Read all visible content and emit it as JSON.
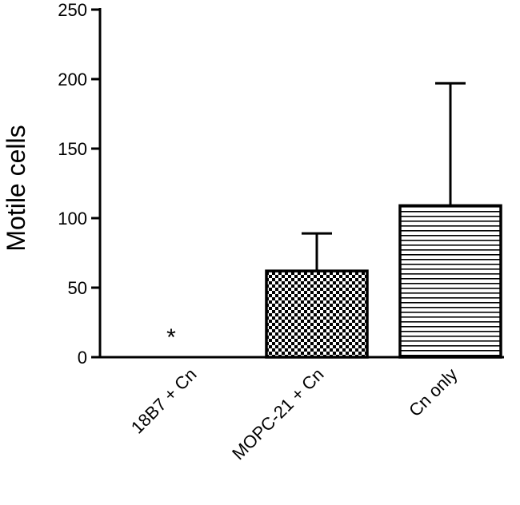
{
  "chart_data": {
    "type": "bar",
    "categories": [
      "18B7 + Cn",
      "MOPC-21 + Cn",
      "Cn only"
    ],
    "values": [
      0,
      62,
      109
    ],
    "error_upper": [
      0,
      89,
      197
    ],
    "patterns": [
      "none",
      "checkerboard",
      "horizontal-lines"
    ],
    "xlabel": "",
    "ylabel": "Motile cells",
    "ylim": [
      0,
      250
    ],
    "yticks": [
      0,
      50,
      100,
      150,
      200,
      250
    ],
    "grid": false,
    "legend": "none",
    "annotations": [
      {
        "category": "18B7 + Cn",
        "text": "*"
      }
    ],
    "colors": {
      "bar_stroke": "#000000",
      "background": "#ffffff"
    }
  }
}
